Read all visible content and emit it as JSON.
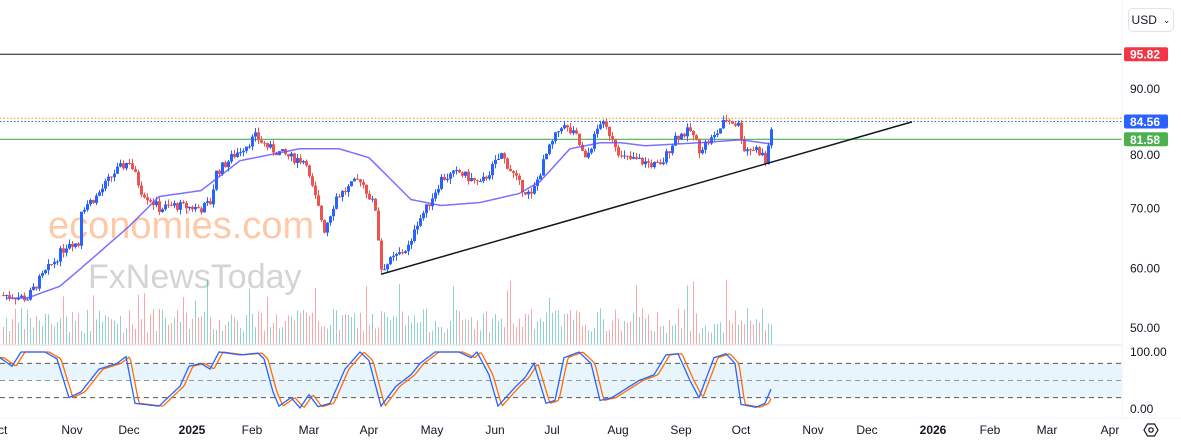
{
  "currency_selector": {
    "label": "USD",
    "icon": "chevron-down-icon"
  },
  "price_axis": {
    "ticks": [
      {
        "value": 90,
        "label": "90.00"
      },
      {
        "value": 80,
        "label": "80.00"
      },
      {
        "value": 70,
        "label": "70.00"
      },
      {
        "value": 60,
        "label": "60.00"
      },
      {
        "value": 50,
        "label": "50.00"
      }
    ],
    "tags": [
      {
        "value": 95.82,
        "label": "95.82",
        "color": "#f23645"
      },
      {
        "value": 84.56,
        "label": "84.56",
        "color": "#2962ff"
      },
      {
        "value": 81.58,
        "label": "81.58",
        "color": "#4caf50"
      }
    ]
  },
  "oscillator_axis": {
    "ticks": [
      {
        "value": 100,
        "label": "100.00"
      },
      {
        "value": 0,
        "label": "0.00"
      }
    ]
  },
  "time_axis": [
    {
      "label": "ct",
      "day": 0
    },
    {
      "label": "Nov",
      "day": 24
    },
    {
      "label": "Dec",
      "day": 43
    },
    {
      "label": "2025",
      "day": 64,
      "bold": true
    },
    {
      "label": "Feb",
      "day": 84
    },
    {
      "label": "Mar",
      "day": 103
    },
    {
      "label": "Apr",
      "day": 123
    },
    {
      "label": "May",
      "day": 144
    },
    {
      "label": "Jun",
      "day": 165
    },
    {
      "label": "Jul",
      "day": 184
    },
    {
      "label": "Aug",
      "day": 206
    },
    {
      "label": "Sep",
      "day": 227
    },
    {
      "label": "Oct",
      "day": 247
    },
    {
      "label": "Nov",
      "day": 271
    },
    {
      "label": "Dec",
      "day": 289
    },
    {
      "label": "2026",
      "day": 311,
      "bold": true
    },
    {
      "label": "Feb",
      "day": 330
    },
    {
      "label": "Mar",
      "day": 349
    },
    {
      "label": "Apr",
      "day": 370
    }
  ],
  "settings_icon": "gear-icon",
  "watermark": {
    "line1": "economies.com",
    "line2": "FxNewsToday"
  },
  "colors": {
    "up": "#2962ff",
    "down": "#ef5350",
    "ma": "#5b4cff",
    "stoch_k": "#2962ff",
    "stoch_d": "#ff6d00",
    "resistance": "#f23645",
    "support": "#4caf50"
  },
  "chart_data": {
    "type": "candlestick",
    "x_unit": "trading day",
    "close_path": [
      [
        2,
        55.5
      ],
      [
        9,
        55
      ],
      [
        13,
        58
      ],
      [
        23,
        64.5
      ],
      [
        26,
        64
      ],
      [
        27,
        70
      ],
      [
        32,
        72
      ],
      [
        38,
        76
      ],
      [
        43,
        78
      ],
      [
        47,
        73
      ],
      [
        53,
        70
      ],
      [
        58,
        70.5
      ],
      [
        67,
        70
      ],
      [
        70,
        71
      ],
      [
        72,
        76
      ],
      [
        78,
        79
      ],
      [
        85,
        82
      ],
      [
        90,
        80
      ],
      [
        97,
        78.5
      ],
      [
        102,
        78
      ],
      [
        103,
        75
      ],
      [
        106,
        70
      ],
      [
        108,
        66.5
      ],
      [
        112,
        72
      ],
      [
        115,
        73
      ],
      [
        120,
        75
      ],
      [
        125,
        70
      ],
      [
        126,
        65
      ],
      [
        127,
        60
      ],
      [
        132,
        62
      ],
      [
        137,
        64
      ],
      [
        138,
        67
      ],
      [
        142,
        70
      ],
      [
        147,
        75
      ],
      [
        153,
        76
      ],
      [
        160,
        74
      ],
      [
        167,
        79
      ],
      [
        173,
        74
      ],
      [
        177,
        72
      ],
      [
        182,
        79
      ],
      [
        187,
        84
      ],
      [
        192,
        82
      ],
      [
        195,
        78
      ],
      [
        200,
        84.5
      ],
      [
        204,
        82
      ],
      [
        207,
        78.5
      ],
      [
        213,
        78
      ],
      [
        220,
        77
      ],
      [
        225,
        82
      ],
      [
        230,
        83
      ],
      [
        233,
        80
      ],
      [
        238,
        82
      ],
      [
        242,
        85
      ],
      [
        246,
        84
      ],
      [
        248,
        80
      ],
      [
        252,
        80
      ],
      [
        254,
        79
      ],
      [
        255,
        77.5
      ],
      [
        257,
        83.5
      ]
    ],
    "moving_average": [
      [
        2,
        55
      ],
      [
        9,
        55
      ],
      [
        20,
        57
      ],
      [
        27,
        60
      ],
      [
        43,
        67
      ],
      [
        53,
        72
      ],
      [
        67,
        73
      ],
      [
        80,
        78
      ],
      [
        100,
        80
      ],
      [
        113,
        80
      ],
      [
        123,
        78.5
      ],
      [
        137,
        71.5
      ],
      [
        147,
        70.5
      ],
      [
        160,
        71
      ],
      [
        173,
        72.5
      ],
      [
        180,
        74.5
      ],
      [
        190,
        80
      ],
      [
        200,
        81
      ],
      [
        207,
        81
      ],
      [
        215,
        80.5
      ],
      [
        233,
        81
      ],
      [
        247,
        81.5
      ],
      [
        257,
        80.8
      ]
    ],
    "horizontal_lines": [
      95.82,
      85.1,
      84.56,
      81.58
    ],
    "trendline": [
      [
        127,
        59
      ],
      [
        304,
        84.5
      ]
    ],
    "stochastic": [
      [
        0,
        90
      ],
      [
        4,
        75
      ],
      [
        7,
        100
      ],
      [
        15,
        100
      ],
      [
        19,
        88
      ],
      [
        23,
        20
      ],
      [
        27,
        30
      ],
      [
        33,
        70
      ],
      [
        39,
        80
      ],
      [
        42,
        92
      ],
      [
        45,
        10
      ],
      [
        53,
        5
      ],
      [
        60,
        40
      ],
      [
        63,
        75
      ],
      [
        67,
        80
      ],
      [
        70,
        70
      ],
      [
        73,
        100
      ],
      [
        80,
        95
      ],
      [
        86,
        98
      ],
      [
        88,
        88
      ],
      [
        91,
        30
      ],
      [
        93,
        5
      ],
      [
        97,
        20
      ],
      [
        100,
        2
      ],
      [
        103,
        25
      ],
      [
        106,
        4
      ],
      [
        110,
        10
      ],
      [
        115,
        70
      ],
      [
        120,
        100
      ],
      [
        123,
        85
      ],
      [
        127,
        5
      ],
      [
        132,
        40
      ],
      [
        137,
        60
      ],
      [
        140,
        80
      ],
      [
        145,
        100
      ],
      [
        153,
        100
      ],
      [
        157,
        90
      ],
      [
        159,
        100
      ],
      [
        163,
        60
      ],
      [
        166,
        5
      ],
      [
        172,
        40
      ],
      [
        175,
        55
      ],
      [
        178,
        80
      ],
      [
        182,
        10
      ],
      [
        185,
        15
      ],
      [
        188,
        90
      ],
      [
        193,
        100
      ],
      [
        197,
        80
      ],
      [
        200,
        15
      ],
      [
        204,
        20
      ],
      [
        207,
        30
      ],
      [
        213,
        50
      ],
      [
        218,
        60
      ],
      [
        222,
        95
      ],
      [
        226,
        97
      ],
      [
        230,
        50
      ],
      [
        233,
        20
      ],
      [
        238,
        90
      ],
      [
        242,
        97
      ],
      [
        245,
        80
      ],
      [
        247,
        8
      ],
      [
        252,
        3
      ],
      [
        255,
        10
      ],
      [
        257,
        35
      ]
    ],
    "stochastic_levels": [
      80,
      50,
      20
    ],
    "ylim": [
      48,
      98
    ]
  }
}
